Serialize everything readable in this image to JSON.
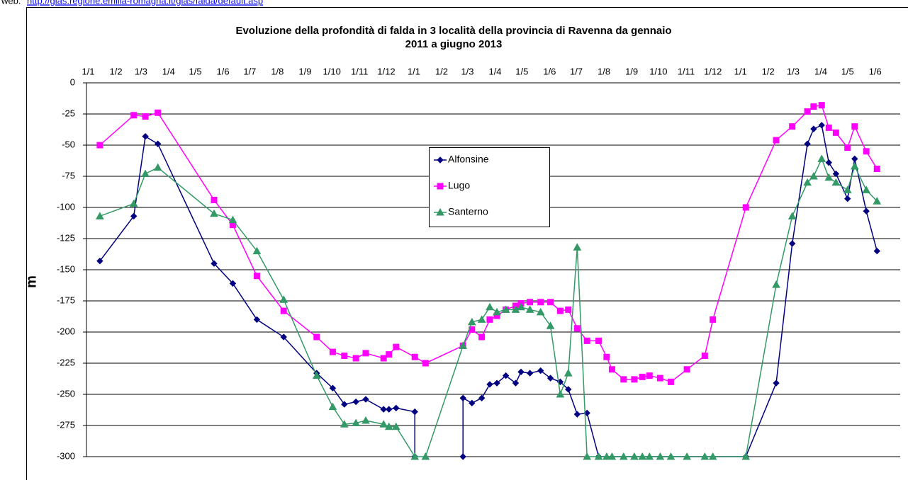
{
  "header": {
    "prefix": "web:",
    "link": "http://gias.regione.emilia-romagna.it/gias/falda/default.asp"
  },
  "chart_data": {
    "type": "line",
    "title_lines": [
      "Evoluzione della profondità di falda in 3 località della provincia di Ravenna da gennaio",
      "2011 a giugno 2013"
    ],
    "y_label": "m",
    "xlim": [
      -2,
      910
    ],
    "xticks": [
      {
        "value": 0,
        "label": "1/1"
      },
      {
        "value": 31,
        "label": "1/2"
      },
      {
        "value": 59,
        "label": "1/3"
      },
      {
        "value": 90,
        "label": "1/4"
      },
      {
        "value": 120,
        "label": "1/5"
      },
      {
        "value": 151,
        "label": "1/6"
      },
      {
        "value": 181,
        "label": "1/7"
      },
      {
        "value": 212,
        "label": "1/8"
      },
      {
        "value": 243,
        "label": "1/9"
      },
      {
        "value": 273,
        "label": "1/10"
      },
      {
        "value": 304,
        "label": "1/11"
      },
      {
        "value": 334,
        "label": "1/12"
      },
      {
        "value": 365,
        "label": "1/1"
      },
      {
        "value": 396,
        "label": "1/2"
      },
      {
        "value": 425,
        "label": "1/3"
      },
      {
        "value": 456,
        "label": "1/4"
      },
      {
        "value": 486,
        "label": "1/5"
      },
      {
        "value": 517,
        "label": "1/6"
      },
      {
        "value": 547,
        "label": "1/7"
      },
      {
        "value": 578,
        "label": "1/8"
      },
      {
        "value": 609,
        "label": "1/9"
      },
      {
        "value": 639,
        "label": "1/10"
      },
      {
        "value": 670,
        "label": "1/11"
      },
      {
        "value": 700,
        "label": "1/12"
      },
      {
        "value": 731,
        "label": "1/1"
      },
      {
        "value": 762,
        "label": "1/2"
      },
      {
        "value": 790,
        "label": "1/3"
      },
      {
        "value": 821,
        "label": "1/4"
      },
      {
        "value": 851,
        "label": "1/5"
      },
      {
        "value": 882,
        "label": "1/6"
      }
    ],
    "ylim": [
      -300,
      0
    ],
    "yticks": [
      0,
      -25,
      -50,
      -75,
      -100,
      -125,
      -150,
      -175,
      -200,
      -225,
      -250,
      -275,
      -300
    ],
    "grid": true,
    "series": [
      {
        "name": "Alfonsine",
        "color": "#000080",
        "marker": "diamond",
        "x": [
          13,
          51,
          64,
          78,
          141,
          162,
          189,
          219,
          256,
          274,
          287,
          300,
          311,
          331,
          337,
          345,
          366,
          366,
          null,
          420,
          420,
          430,
          441,
          450,
          458,
          468,
          479,
          485,
          495,
          507,
          518,
          529,
          538,
          548,
          559,
          572,
          737,
          771,
          789,
          806,
          813,
          822,
          830,
          838,
          851,
          859,
          872,
          884
        ],
        "values": [
          -143,
          -107,
          -43,
          -49,
          -145,
          -161,
          -190,
          -204,
          -233,
          -245,
          -258,
          -256,
          -254,
          -262,
          -262,
          -261,
          -264,
          -300,
          null,
          -300,
          -253,
          -257,
          -253,
          -242,
          -241,
          -235,
          -241,
          -232,
          -233,
          -231,
          -237,
          -240,
          -246,
          -266,
          -265,
          -300,
          -300,
          -241,
          -129,
          -49,
          -37,
          -34,
          -64,
          -73,
          -93,
          -61,
          -103,
          -135
        ]
      },
      {
        "name": "Lugo",
        "color": "#ff00ff",
        "marker": "square",
        "x": [
          13,
          51,
          64,
          78,
          141,
          162,
          189,
          219,
          256,
          274,
          287,
          300,
          311,
          331,
          337,
          345,
          366,
          378,
          420,
          430,
          441,
          450,
          458,
          468,
          479,
          485,
          495,
          507,
          518,
          529,
          538,
          548,
          559,
          572,
          581,
          587,
          600,
          612,
          621,
          629,
          641,
          653,
          671,
          691,
          700,
          737,
          771,
          789,
          806,
          813,
          822,
          830,
          838,
          851,
          859,
          872,
          884
        ],
        "values": [
          -50,
          -26,
          -27,
          -24,
          -94,
          -114,
          -155,
          -183,
          -204,
          -216,
          -219,
          -221,
          -217,
          -221,
          -218,
          -212,
          -220,
          -225,
          -211,
          -198,
          -204,
          -190,
          -187,
          -182,
          -179,
          -177,
          -176,
          -176,
          -176,
          -183,
          -182,
          -197,
          -207,
          -207,
          -220,
          -230,
          -238,
          -238,
          -236,
          -235,
          -237,
          -240,
          -230,
          -219,
          -190,
          -100,
          -46,
          -35,
          -23,
          -19,
          -18,
          -36,
          -40,
          -52,
          -35,
          -55,
          -69
        ]
      },
      {
        "name": "Santerno",
        "color": "#339966",
        "marker": "triangle",
        "x": [
          13,
          51,
          64,
          78,
          141,
          162,
          189,
          219,
          256,
          274,
          287,
          300,
          311,
          331,
          337,
          345,
          366,
          378,
          420,
          430,
          441,
          450,
          458,
          468,
          479,
          485,
          495,
          507,
          518,
          529,
          538,
          548,
          559,
          572,
          581,
          587,
          600,
          612,
          621,
          629,
          641,
          653,
          671,
          691,
          700,
          737,
          771,
          789,
          806,
          813,
          822,
          830,
          838,
          851,
          859,
          872,
          884
        ],
        "values": [
          -107,
          -97,
          -73,
          -68,
          -105,
          -110,
          -135,
          -174,
          -235,
          -260,
          -274,
          -273,
          -271,
          -274,
          -276,
          -276,
          -300,
          -300,
          -211,
          -192,
          -190,
          -180,
          -184,
          -182,
          -182,
          -180,
          -182,
          -184,
          -195,
          -250,
          -233,
          -132,
          -300,
          -300,
          -300,
          -300,
          -300,
          -300,
          -300,
          -300,
          -300,
          -300,
          -300,
          -300,
          -300,
          -300,
          -162,
          -107,
          -80,
          -75,
          -61,
          -76,
          -80,
          -86,
          -67,
          -86,
          -95
        ]
      }
    ]
  }
}
